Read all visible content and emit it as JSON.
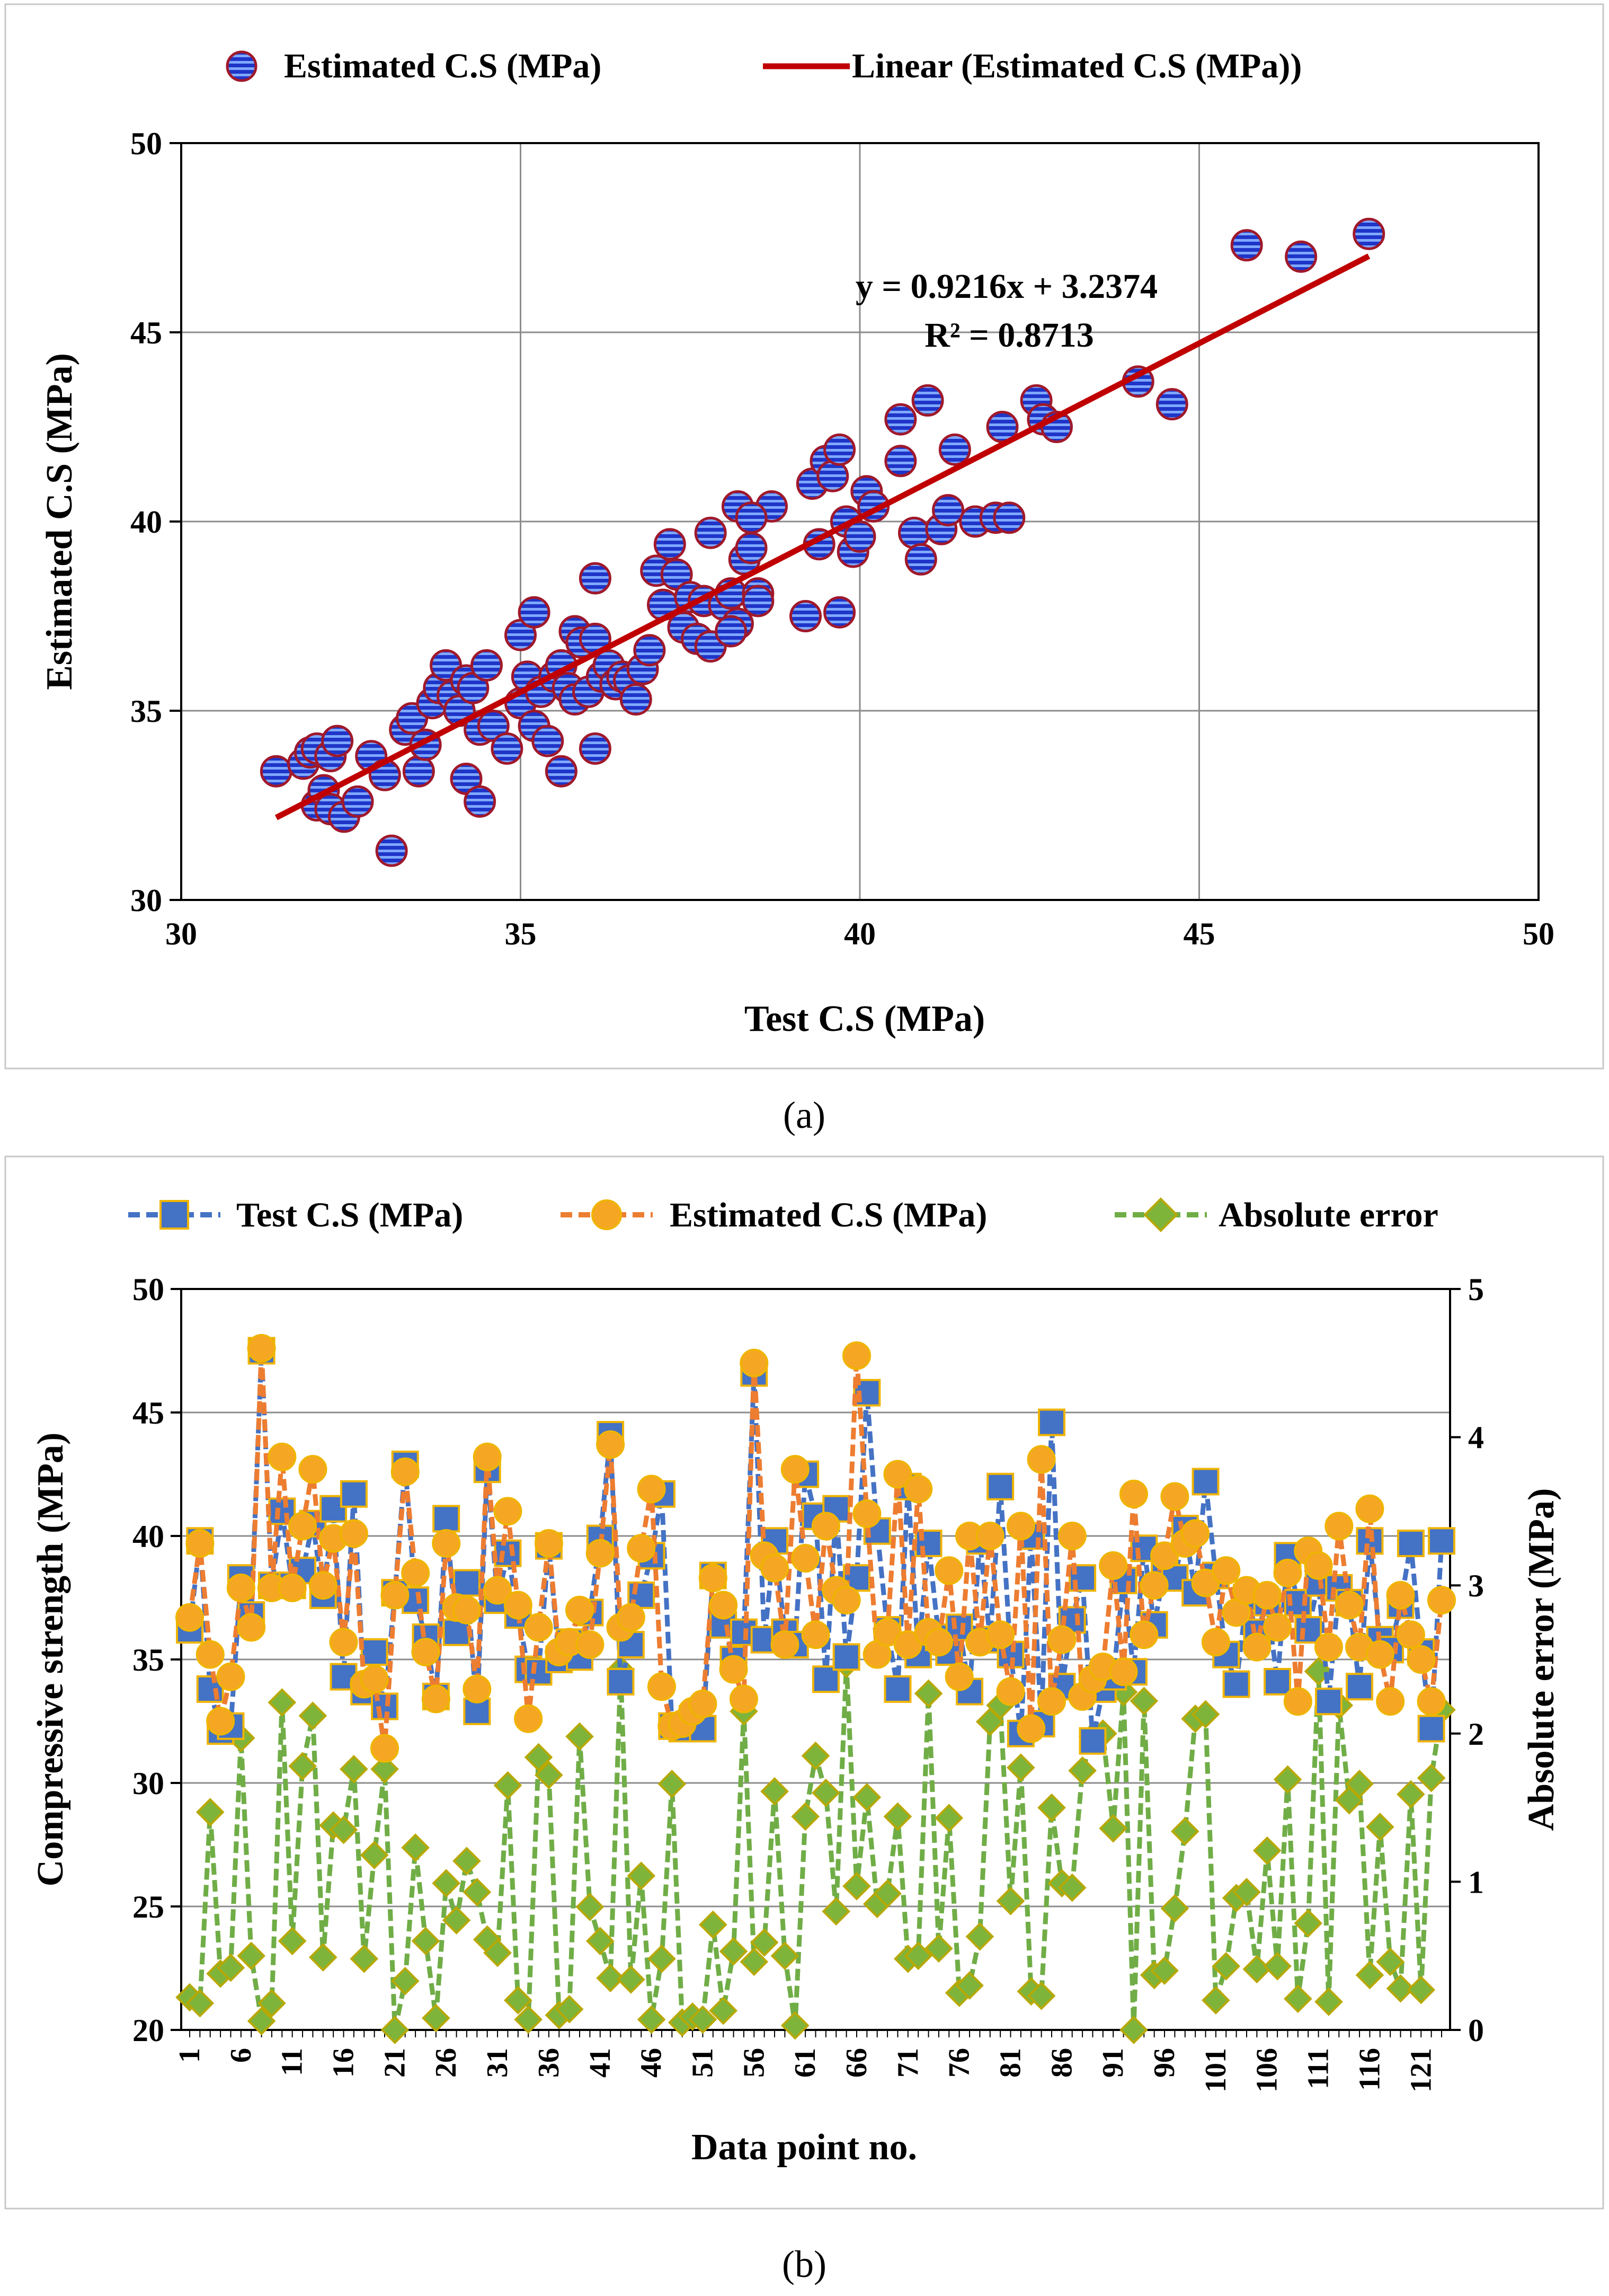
{
  "colors": {
    "blue_marker": "#1f35c8",
    "marker_edge": "#a0192b",
    "trend_line": "#c00000",
    "test_line": "#4472c4",
    "est_line": "#ed7d31",
    "est_fill": "#f5a623",
    "err_line": "#70ad47",
    "err_fill": "#7fb43b",
    "square_edge": "#f0b400",
    "diamond_edge": "#b8a800",
    "grid": "#8c8c8c",
    "frame": "#c8c8c8"
  },
  "chart_data": [
    {
      "panel": "a",
      "type": "scatter",
      "title": "",
      "xlabel": "Test C.S (MPa)",
      "ylabel": "Estimated C.S (MPa)",
      "xlim": [
        30,
        50
      ],
      "ylim": [
        30,
        50
      ],
      "xticks": [
        30,
        35,
        40,
        45,
        50
      ],
      "yticks": [
        30,
        35,
        40,
        45,
        50
      ],
      "xtick_labels": [
        "30",
        "35",
        "40",
        "45",
        "50"
      ],
      "ytick_labels": [
        "30",
        "35",
        "40",
        "45",
        "50"
      ],
      "grid": true,
      "legend_position": "top-center",
      "legend": [
        "Estimated C.S (MPa)",
        "Linear (Estimated C.S (MPa))"
      ],
      "equation": "y = 0.9216x + 3.2374",
      "r_squared": "R² = 0.8713",
      "trendline": {
        "slope": 0.9216,
        "intercept": 3.2374,
        "x_range": [
          31.4,
          47.5
        ]
      },
      "points": [
        [
          31.4,
          33.4
        ],
        [
          31.8,
          33.6
        ],
        [
          31.9,
          33.9
        ],
        [
          32.0,
          34.0
        ],
        [
          32.2,
          33.8
        ],
        [
          32.3,
          34.2
        ],
        [
          32.0,
          32.5
        ],
        [
          32.1,
          32.9
        ],
        [
          32.2,
          32.4
        ],
        [
          32.4,
          32.2
        ],
        [
          32.6,
          32.6
        ],
        [
          32.8,
          33.8
        ],
        [
          33.0,
          33.3
        ],
        [
          33.1,
          31.3
        ],
        [
          33.3,
          34.5
        ],
        [
          33.4,
          34.8
        ],
        [
          33.5,
          33.4
        ],
        [
          33.6,
          34.1
        ],
        [
          33.7,
          35.2
        ],
        [
          33.8,
          35.6
        ],
        [
          33.9,
          36.2
        ],
        [
          34.0,
          35.4
        ],
        [
          34.1,
          35.0
        ],
        [
          34.2,
          35.8
        ],
        [
          34.3,
          35.6
        ],
        [
          34.2,
          33.2
        ],
        [
          34.4,
          34.5
        ],
        [
          34.4,
          32.6
        ],
        [
          34.5,
          36.2
        ],
        [
          34.6,
          34.6
        ],
        [
          34.8,
          34.0
        ],
        [
          35.0,
          35.2
        ],
        [
          35.0,
          37.0
        ],
        [
          35.1,
          35.9
        ],
        [
          35.2,
          37.6
        ],
        [
          35.2,
          34.6
        ],
        [
          35.3,
          35.5
        ],
        [
          35.4,
          34.2
        ],
        [
          35.5,
          35.9
        ],
        [
          35.6,
          36.2
        ],
        [
          35.6,
          33.4
        ],
        [
          35.7,
          35.6
        ],
        [
          35.8,
          35.3
        ],
        [
          35.8,
          37.1
        ],
        [
          35.9,
          36.8
        ],
        [
          36.0,
          35.5
        ],
        [
          36.1,
          36.9
        ],
        [
          36.2,
          35.9
        ],
        [
          36.1,
          34.0
        ],
        [
          36.1,
          38.5
        ],
        [
          36.3,
          36.2
        ],
        [
          36.4,
          35.7
        ],
        [
          36.5,
          35.9
        ],
        [
          36.6,
          35.8
        ],
        [
          36.7,
          35.3
        ],
        [
          36.8,
          36.1
        ],
        [
          36.9,
          36.6
        ],
        [
          37.0,
          38.7
        ],
        [
          37.1,
          37.8
        ],
        [
          37.2,
          39.4
        ],
        [
          37.3,
          38.6
        ],
        [
          37.4,
          37.2
        ],
        [
          37.5,
          38.0
        ],
        [
          37.6,
          36.9
        ],
        [
          37.7,
          37.9
        ],
        [
          37.8,
          39.7
        ],
        [
          37.8,
          36.7
        ],
        [
          38.0,
          37.8
        ],
        [
          38.1,
          38.1
        ],
        [
          38.2,
          37.3
        ],
        [
          38.2,
          40.4
        ],
        [
          38.3,
          39.0
        ],
        [
          38.4,
          39.3
        ],
        [
          38.5,
          38.1
        ],
        [
          38.5,
          37.9
        ],
        [
          38.7,
          40.4
        ],
        [
          38.4,
          40.1
        ],
        [
          38.1,
          37.1
        ],
        [
          39.2,
          37.5
        ],
        [
          39.3,
          41.0
        ],
        [
          39.4,
          39.4
        ],
        [
          39.5,
          41.6
        ],
        [
          39.6,
          41.2
        ],
        [
          39.7,
          41.9
        ],
        [
          39.8,
          40.0
        ],
        [
          39.7,
          37.6
        ],
        [
          39.9,
          39.2
        ],
        [
          40.0,
          39.6
        ],
        [
          40.1,
          40.8
        ],
        [
          40.2,
          40.4
        ],
        [
          40.6,
          41.6
        ],
        [
          40.6,
          42.7
        ],
        [
          40.8,
          39.7
        ],
        [
          40.9,
          39.0
        ],
        [
          41.0,
          43.2
        ],
        [
          41.2,
          39.8
        ],
        [
          41.3,
          40.3
        ],
        [
          41.4,
          41.9
        ],
        [
          41.7,
          40.0
        ],
        [
          42.0,
          40.1
        ],
        [
          42.1,
          42.5
        ],
        [
          42.2,
          40.1
        ],
        [
          42.6,
          43.2
        ],
        [
          42.7,
          42.7
        ],
        [
          42.9,
          42.5
        ],
        [
          44.1,
          43.7
        ],
        [
          44.6,
          43.1
        ],
        [
          45.7,
          47.3
        ],
        [
          46.5,
          47.0
        ],
        [
          47.5,
          47.6
        ]
      ]
    },
    {
      "panel": "b",
      "type": "line",
      "xlabel": "Data point no.",
      "ylabel": "Compressive strength (MPa)",
      "y2label": "Absolute error (MPa)",
      "ylim": [
        20,
        50
      ],
      "y2lim": [
        0,
        5
      ],
      "yticks": [
        20,
        25,
        30,
        35,
        40,
        45,
        50
      ],
      "ytick_labels": [
        "20",
        "25",
        "30",
        "35",
        "40",
        "45",
        "50"
      ],
      "y2ticks": [
        0,
        1,
        2,
        3,
        4,
        5
      ],
      "y2tick_labels": [
        "0",
        "1",
        "2",
        "3",
        "4",
        "5"
      ],
      "xtick_values": [
        1,
        6,
        11,
        16,
        21,
        26,
        31,
        36,
        41,
        46,
        51,
        56,
        61,
        66,
        71,
        76,
        81,
        86,
        91,
        96,
        101,
        106,
        111,
        116,
        121
      ],
      "xtick_labels": [
        "1",
        "6",
        "11",
        "16",
        "21",
        "26",
        "31",
        "36",
        "41",
        "46",
        "51",
        "56",
        "61",
        "66",
        "71",
        "76",
        "81",
        "86",
        "91",
        "96",
        "101",
        "106",
        "111",
        "116",
        "121"
      ],
      "x_count": 123,
      "grid": true,
      "legend_position": "top-center",
      "legend": [
        "Test C.S (MPa)",
        "Estimated C.S (MPa)",
        "Absolute error"
      ],
      "series": [
        {
          "name": "Test C.S (MPa)",
          "axis": "left",
          "values": [
            36.2,
            39.8,
            33.8,
            32.1,
            32.3,
            38.3,
            36.8,
            47.5,
            38.0,
            41.0,
            38.0,
            38.6,
            40.5,
            37.6,
            41.1,
            34.3,
            41.7,
            33.7,
            35.3,
            33.1,
            37.7,
            42.9,
            37.4,
            35.9,
            33.5,
            40.7,
            36.1,
            38.1,
            32.9,
            42.7,
            37.4,
            39.3,
            36.8,
            34.6,
            34.5,
            39.6,
            35.0,
            35.7,
            35.1,
            36.9,
            39.9,
            44.1,
            34.1,
            35.6,
            37.6,
            39.2,
            41.7,
            32.3,
            32.2,
            32.6,
            32.2,
            38.4,
            36.4,
            35.0,
            36.1,
            46.6,
            35.8,
            39.8,
            36.1,
            35.6,
            42.5,
            40.8,
            34.2,
            41.1,
            35.1,
            38.3,
            45.8,
            40.2,
            36.2,
            33.8,
            42.0,
            35.2,
            39.7,
            35.9,
            35.3,
            36.3,
            33.7,
            39.8,
            35.8,
            42.0,
            35.2,
            32.0,
            40.0,
            32.4,
            44.6,
            33.9,
            36.6,
            38.3,
            31.7,
            33.8,
            34.3,
            38.2,
            34.5,
            39.5,
            36.4,
            38.6,
            38.3,
            40.3,
            37.7,
            42.2,
            38.4,
            35.2,
            34.0,
            37.5,
            36.1,
            37.3,
            34.1,
            39.2,
            37.3,
            36.2,
            38.1,
            33.3,
            37.9,
            37.3,
            33.9,
            39.8,
            35.8,
            35.4,
            37.2,
            39.7,
            35.3,
            32.2,
            39.8
          ]
        },
        {
          "name": "Estimated C.S (MPa)",
          "axis": "left",
          "values": [
            36.7,
            39.7,
            35.2,
            32.5,
            34.3,
            37.9,
            36.3,
            47.6,
            37.9,
            43.2,
            37.9,
            40.4,
            42.7,
            38.0,
            39.9,
            35.7,
            40.1,
            34.0,
            34.2,
            31.4,
            37.6,
            42.6,
            38.5,
            35.3,
            33.4,
            39.7,
            37.1,
            37.0,
            33.8,
            43.2,
            37.8,
            41.0,
            37.2,
            32.6,
            36.3,
            39.7,
            35.3,
            35.7,
            37.0,
            35.6,
            39.3,
            43.7,
            36.3,
            36.7,
            39.5,
            41.9,
            33.9,
            32.3,
            32.4,
            32.9,
            33.2,
            38.3,
            37.2,
            34.6,
            33.4,
            47.0,
            39.2,
            38.7,
            35.6,
            42.7,
            39.1,
            36.0,
            40.4,
            37.8,
            37.4,
            47.3,
            40.9,
            35.2,
            36.1,
            42.5,
            35.6,
            41.9,
            36.1,
            35.7,
            38.6,
            34.3,
            40.0,
            35.7,
            40.0,
            36.0,
            33.7,
            40.4,
            32.2,
            43.1,
            33.3,
            35.8,
            40.0,
            33.5,
            34.2,
            34.7,
            38.8,
            34.5,
            41.7,
            36.0,
            38.0,
            39.2,
            41.6,
            39.7,
            40.1,
            38.1,
            35.7,
            38.6,
            36.9,
            37.8,
            35.5,
            37.6,
            36.3,
            38.5,
            33.3,
            39.4,
            38.8,
            35.5,
            40.4,
            37.2,
            35.5,
            41.1,
            35.2,
            33.3,
            37.6,
            36.0,
            35.0,
            33.3,
            37.4
          ]
        },
        {
          "name": "Absolute error",
          "axis": "right",
          "values": [
            0.22,
            0.18,
            1.47,
            0.38,
            0.42,
            1.97,
            0.5,
            0.06,
            0.18,
            2.21,
            0.6,
            1.78,
            2.12,
            0.49,
            1.38,
            1.35,
            1.76,
            0.48,
            1.18,
            1.76,
            0.0,
            0.33,
            1.23,
            0.6,
            0.08,
            0.99,
            0.74,
            1.14,
            0.93,
            0.61,
            0.52,
            1.65,
            0.2,
            0.07,
            1.84,
            1.72,
            0.1,
            0.14,
            1.98,
            0.83,
            0.6,
            0.35,
            2.43,
            0.34,
            1.04,
            0.07,
            0.48,
            1.66,
            0.05,
            0.09,
            0.07,
            0.71,
            0.13,
            0.53,
            2.15,
            0.46,
            0.59,
            1.61,
            0.5,
            0.03,
            1.44,
            1.85,
            1.6,
            0.8,
            2.47,
            0.97,
            1.57,
            0.85,
            0.92,
            1.44,
            0.48,
            0.5,
            2.27,
            0.55,
            1.43,
            0.25,
            0.3,
            0.63,
            2.08,
            2.19,
            0.87,
            1.77,
            0.26,
            0.23,
            1.5,
            0.99,
            0.96,
            1.75,
            1.98,
            2.0,
            1.36,
            2.28,
            0.0,
            2.22,
            0.37,
            0.4,
            0.82,
            1.34,
            2.1,
            2.13,
            0.2,
            0.43,
            0.89,
            0.93,
            0.41,
            1.21,
            0.43,
            1.69,
            0.21,
            0.72,
            2.42,
            0.19,
            2.19,
            1.55,
            1.66,
            0.37,
            1.37,
            0.46,
            0.28,
            1.59,
            0.27,
            1.7,
            2.16
          ]
        }
      ]
    }
  ],
  "captions": {
    "a": "(a)",
    "b": "(b)"
  }
}
